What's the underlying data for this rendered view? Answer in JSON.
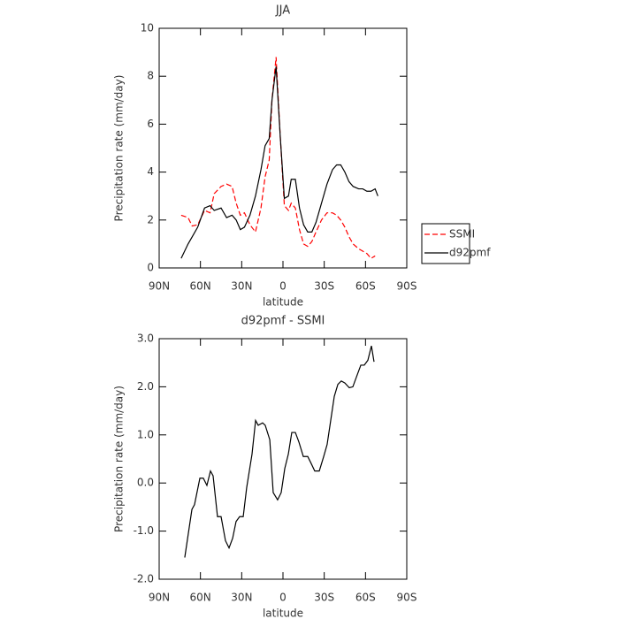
{
  "chart_data": [
    {
      "type": "line",
      "title": "JJA",
      "xlabel": "latitude",
      "ylabel": "Precipitation rate (mm/day)",
      "x": [
        74,
        69,
        66,
        62,
        57,
        53,
        50,
        45,
        41,
        37,
        34,
        31,
        28,
        24,
        20,
        16,
        13,
        10,
        8,
        5,
        2,
        -1,
        -4,
        -6,
        -9,
        -12,
        -15,
        -18,
        -21,
        -24,
        -28,
        -32,
        -36,
        -39,
        -42,
        -45,
        -48,
        -51,
        -55,
        -58,
        -61,
        -64,
        -67,
        -69
      ],
      "series": [
        {
          "name": "SSMI",
          "color": "#ff0000",
          "dash": true,
          "values": [
            2.2,
            2.1,
            1.75,
            1.8,
            2.4,
            2.3,
            3.1,
            3.4,
            3.5,
            3.4,
            2.7,
            2.2,
            2.3,
            1.8,
            1.5,
            2.5,
            3.8,
            4.5,
            7.0,
            8.8,
            5.5,
            2.6,
            2.4,
            2.7,
            2.5,
            1.6,
            1.0,
            0.9,
            1.1,
            1.5,
            2.0,
            2.3,
            2.3,
            2.2,
            2.0,
            1.7,
            1.3,
            1.0,
            0.8,
            0.7,
            0.6,
            0.4,
            0.5,
            null
          ]
        },
        {
          "name": "d92pmf",
          "color": "#000000",
          "dash": false,
          "values": [
            0.4,
            1.0,
            1.3,
            1.7,
            2.5,
            2.6,
            2.4,
            2.5,
            2.1,
            2.2,
            2.0,
            1.6,
            1.7,
            2.2,
            3.0,
            4.1,
            5.1,
            5.4,
            7.0,
            8.4,
            5.5,
            2.9,
            3.0,
            3.7,
            3.7,
            2.5,
            1.8,
            1.5,
            1.5,
            1.9,
            2.7,
            3.5,
            4.1,
            4.3,
            4.3,
            4.0,
            3.6,
            3.4,
            3.3,
            3.3,
            3.2,
            3.2,
            3.3,
            3.0
          ]
        }
      ],
      "xlim": [
        90,
        -90
      ],
      "xticks": [
        {
          "value": 90,
          "label": "90N"
        },
        {
          "value": 60,
          "label": "60N"
        },
        {
          "value": 30,
          "label": "30N"
        },
        0,
        {
          "value": -30,
          "label": "30S"
        },
        {
          "value": -60,
          "label": "60S"
        },
        {
          "value": -90,
          "label": "90S"
        }
      ],
      "ylim": [
        0,
        10
      ],
      "yticks": [
        0,
        2,
        4,
        6,
        8,
        10
      ],
      "legend": "right"
    },
    {
      "type": "line",
      "title": "d92pmf - SSMI",
      "xlabel": "latitude",
      "ylabel": "Precipitation rate (mm/day)",
      "x": [
        71.4,
        66.2,
        64.3,
        60.4,
        57.9,
        55.3,
        52.7,
        50.8,
        47.6,
        45.0,
        41.8,
        39.2,
        36.6,
        34.1,
        31.5,
        28.9,
        26.4,
        22.5,
        19.9,
        18.0,
        14.8,
        12.9,
        9.6,
        7.1,
        3.9,
        1.3,
        -1.3,
        -3.9,
        -6.4,
        -9.0,
        -11.6,
        -14.8,
        -18.0,
        -20.6,
        -23.1,
        -26.4,
        -29.6,
        -32.1,
        -34.7,
        -37.3,
        -39.9,
        -42.4,
        -45.0,
        -48.2,
        -50.8,
        -54.0,
        -56.6,
        -59.1,
        -61.7,
        -64.3,
        -66.2
      ],
      "series": [
        {
          "name": "d92pmf - SSMI",
          "color": "#000000",
          "dash": false,
          "values": [
            -1.55,
            -0.55,
            -0.45,
            0.1,
            0.1,
            -0.05,
            0.25,
            0.15,
            -0.7,
            -0.7,
            -1.2,
            -1.35,
            -1.15,
            -0.8,
            -0.7,
            -0.7,
            -0.1,
            0.6,
            1.3,
            1.2,
            1.25,
            1.2,
            0.9,
            -0.2,
            -0.35,
            -0.2,
            0.3,
            0.6,
            1.05,
            1.05,
            0.85,
            0.55,
            0.55,
            0.4,
            0.25,
            0.25,
            0.55,
            0.8,
            1.3,
            1.8,
            2.05,
            2.12,
            2.08,
            1.98,
            2.0,
            2.25,
            2.45,
            2.45,
            2.55,
            2.85,
            2.52
          ]
        }
      ],
      "xlim": [
        90,
        -90
      ],
      "xticks": [
        {
          "value": 90,
          "label": "90N"
        },
        {
          "value": 60,
          "label": "60N"
        },
        {
          "value": 30,
          "label": "30N"
        },
        0,
        {
          "value": -30,
          "label": "30S"
        },
        {
          "value": -60,
          "label": "60S"
        },
        {
          "value": -90,
          "label": "90S"
        }
      ],
      "ylim": [
        -2,
        3
      ],
      "yticks": [
        {
          "value": 3,
          "label": "3.0"
        },
        {
          "value": 2,
          "label": "2.0"
        },
        {
          "value": 1,
          "label": "1.0"
        },
        {
          "value": 0,
          "label": "0.0"
        },
        {
          "value": -1,
          "label": "-1.0"
        },
        {
          "value": -2,
          "label": "-2.0"
        }
      ]
    }
  ]
}
